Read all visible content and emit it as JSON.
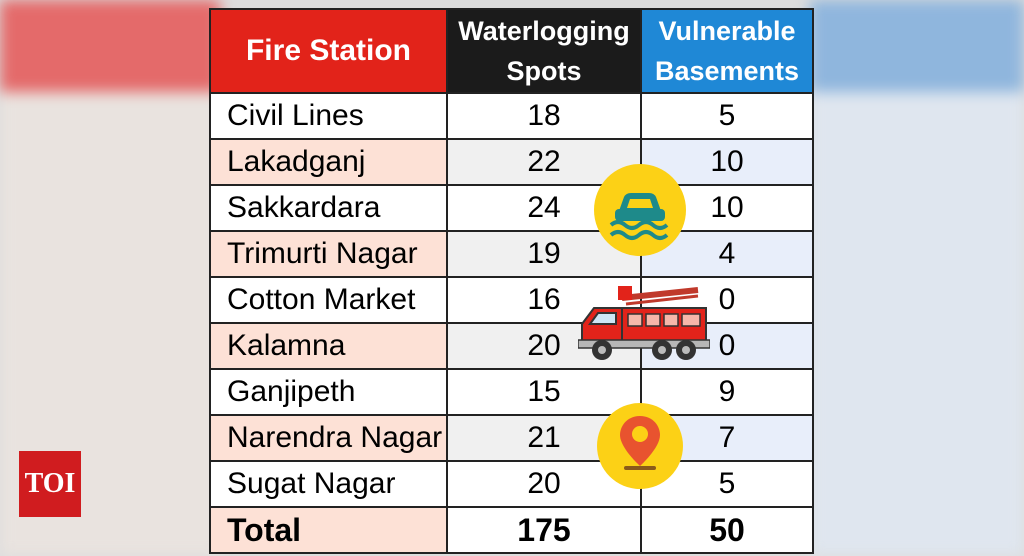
{
  "logo": {
    "text": "TOI"
  },
  "chart_data": {
    "type": "table",
    "columns": [
      "Fire Station",
      "Waterlogging Spots",
      "Vulnerable Basements"
    ],
    "header_lines": [
      [
        "Fire Station"
      ],
      [
        "Waterlogging",
        "Spots"
      ],
      [
        "Vulnerable",
        "Basements"
      ]
    ],
    "rows": [
      {
        "station": "Civil Lines",
        "waterlogging_spots": 18,
        "vulnerable_basements": 5
      },
      {
        "station": "Lakadganj",
        "waterlogging_spots": 22,
        "vulnerable_basements": 10
      },
      {
        "station": "Sakkardara",
        "waterlogging_spots": 24,
        "vulnerable_basements": 10
      },
      {
        "station": "Trimurti Nagar",
        "waterlogging_spots": 19,
        "vulnerable_basements": 4
      },
      {
        "station": "Cotton Market",
        "waterlogging_spots": 16,
        "vulnerable_basements": 0
      },
      {
        "station": "Kalamna",
        "waterlogging_spots": 20,
        "vulnerable_basements": 0
      },
      {
        "station": "Ganjipeth",
        "waterlogging_spots": 15,
        "vulnerable_basements": 9
      },
      {
        "station": "Narendra Nagar",
        "waterlogging_spots": 21,
        "vulnerable_basements": 7
      },
      {
        "station": "Sugat Nagar",
        "waterlogging_spots": 20,
        "vulnerable_basements": 5
      }
    ],
    "total": {
      "label": "Total",
      "waterlogging_spots": 175,
      "vulnerable_basements": 50
    },
    "colors": {
      "header_station": "#e2231a",
      "header_waterlogging": "#1b1b1b",
      "header_basements": "#1f88d6",
      "row_alt": "#fde1d6",
      "icon_circle": "#fcd116"
    },
    "icons": [
      "flooded-car-icon",
      "fire-truck-icon",
      "location-pin-icon"
    ]
  }
}
